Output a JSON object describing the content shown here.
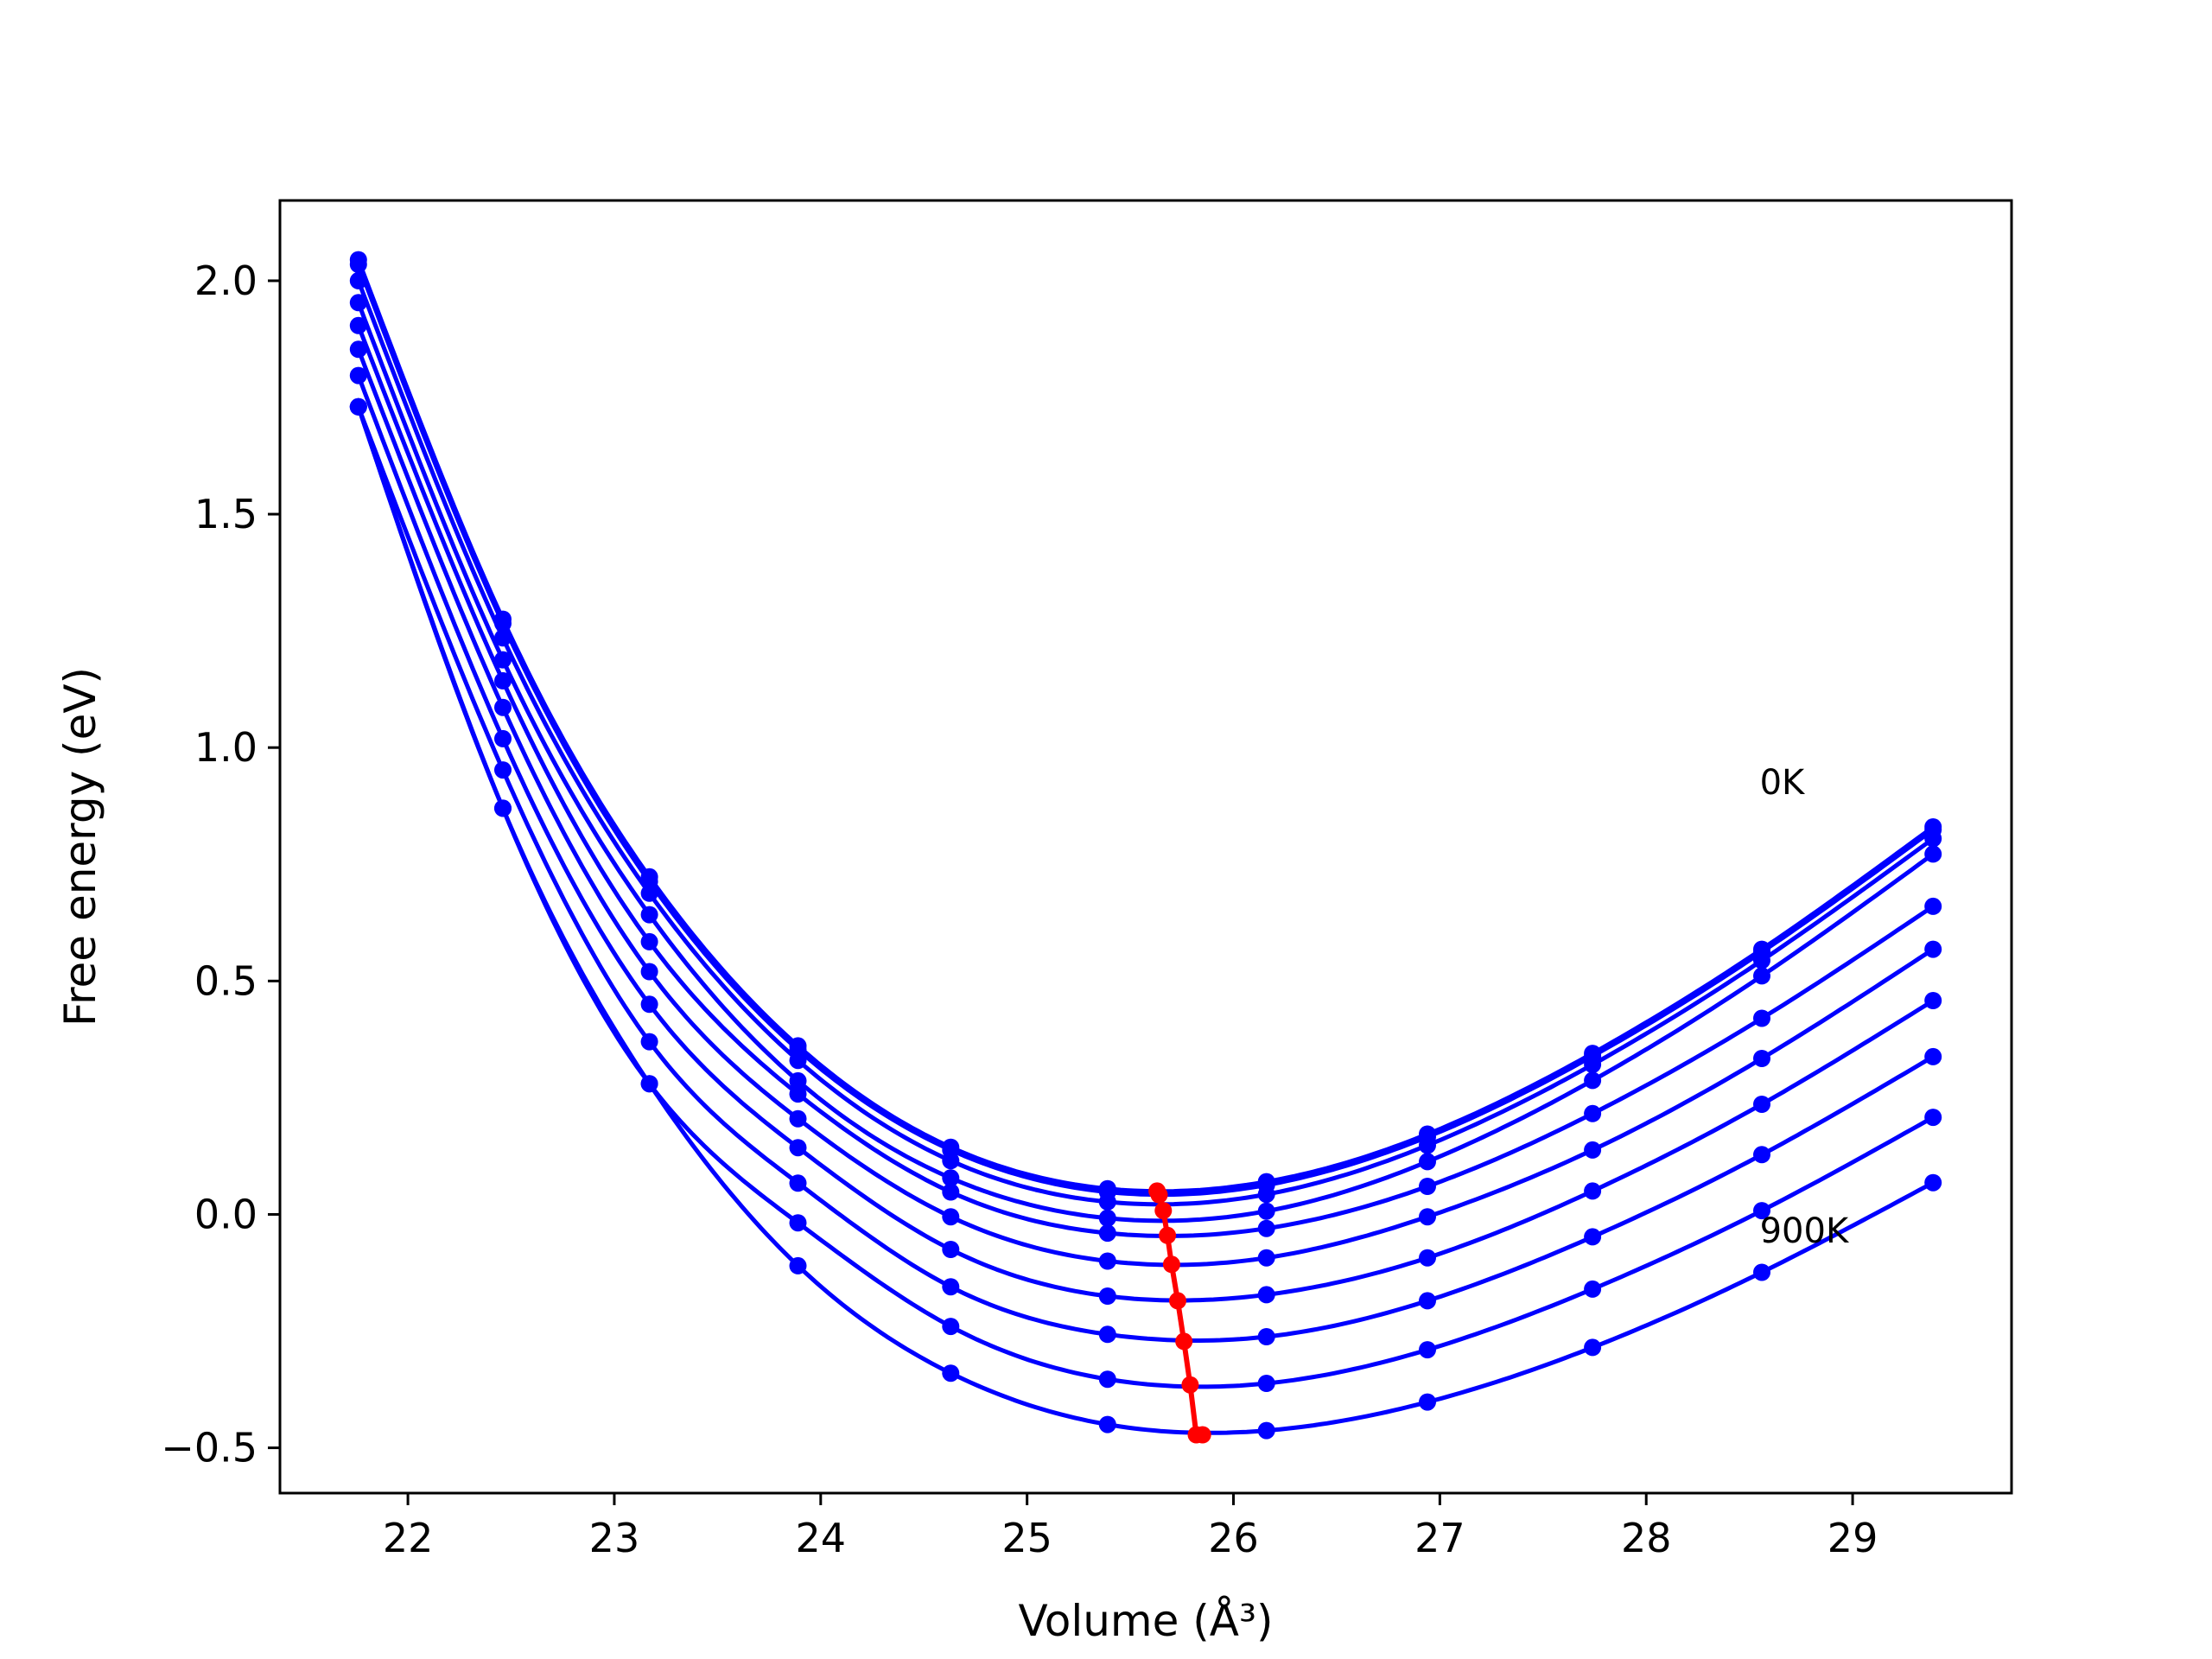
{
  "chart_data": {
    "type": "line",
    "title": "",
    "xlabel": "Volume (Å³)",
    "ylabel": "Free energy (eV)",
    "xlim": [
      21.38,
      29.77
    ],
    "ylim": [
      -0.597,
      2.172
    ],
    "xticks": [
      22,
      23,
      24,
      25,
      26,
      27,
      28,
      29
    ],
    "yticks": [
      -0.5,
      0.0,
      0.5,
      1.0,
      1.5,
      2.0
    ],
    "ytick_labels": [
      "−0.5",
      "0.0",
      "0.5",
      "1.0",
      "1.5",
      "2.0"
    ],
    "grid": false,
    "legend": "none",
    "colors": {
      "curves": "#0000ff",
      "minima": "#ff0000"
    },
    "x": [
      21.76,
      22.46,
      23.17,
      23.89,
      24.63,
      25.39,
      26.16,
      26.94,
      27.74,
      28.56,
      29.39
    ],
    "series": [
      {
        "values": [
          2.045,
          1.275,
          0.723,
          0.361,
          0.144,
          0.055,
          0.07,
          0.172,
          0.345,
          0.568,
          0.83
        ]
      },
      {
        "values": [
          2.035,
          1.266,
          0.713,
          0.353,
          0.138,
          0.048,
          0.063,
          0.166,
          0.339,
          0.562,
          0.824
        ]
      },
      {
        "values": [
          2.0,
          1.235,
          0.688,
          0.33,
          0.115,
          0.027,
          0.043,
          0.148,
          0.321,
          0.544,
          0.805
        ]
      },
      {
        "values": [
          1.953,
          1.188,
          0.642,
          0.286,
          0.078,
          -0.008,
          0.007,
          0.113,
          0.287,
          0.511,
          0.772
        ]
      },
      {
        "values": [
          1.904,
          1.143,
          0.584,
          0.258,
          0.048,
          -0.04,
          -0.03,
          0.06,
          0.216,
          0.42,
          0.66
        ]
      },
      {
        "values": [
          1.853,
          1.086,
          0.52,
          0.205,
          -0.005,
          -0.1,
          -0.093,
          -0.005,
          0.138,
          0.334,
          0.568
        ]
      },
      {
        "values": [
          1.797,
          1.019,
          0.45,
          0.143,
          -0.075,
          -0.175,
          -0.172,
          -0.093,
          0.05,
          0.236,
          0.458
        ]
      },
      {
        "values": [
          1.73,
          0.952,
          0.37,
          0.067,
          -0.155,
          -0.257,
          -0.262,
          -0.185,
          -0.048,
          0.128,
          0.338
        ]
      },
      {
        "values": [
          1.73,
          0.87,
          0.28,
          -0.018,
          -0.24,
          -0.353,
          -0.362,
          -0.29,
          -0.16,
          0.008,
          0.208
        ]
      },
      {
        "values": [
          1.73,
          0.87,
          0.28,
          -0.11,
          -0.34,
          -0.45,
          -0.463,
          -0.402,
          -0.285,
          -0.124,
          0.068
        ]
      }
    ],
    "minima": {
      "x": [
        25.63,
        25.64,
        25.66,
        25.68,
        25.7,
        25.73,
        25.76,
        25.79,
        25.82,
        25.85
      ],
      "y": [
        0.05,
        0.042,
        0.008,
        -0.045,
        -0.107,
        -0.185,
        -0.272,
        -0.365,
        -0.472,
        -0.472
      ]
    },
    "annotations": [
      {
        "text": "0K",
        "x": 28.55,
        "y": 0.9
      },
      {
        "text": "900K",
        "x": 28.55,
        "y": -0.06
      }
    ]
  }
}
